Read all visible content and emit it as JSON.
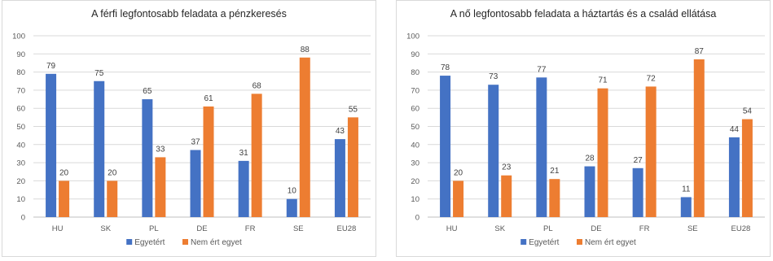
{
  "chart_data": [
    {
      "type": "bar",
      "title": "A férfi legfontosabb feladata a pénzkeresés",
      "categories": [
        "HU",
        "SK",
        "PL",
        "DE",
        "FR",
        "SE",
        "EU28"
      ],
      "series": [
        {
          "name": "Egyetért",
          "color": "#4472C4",
          "values": [
            79,
            75,
            65,
            37,
            31,
            10,
            43
          ]
        },
        {
          "name": "Nem ért egyet",
          "color": "#ED7D31",
          "values": [
            20,
            20,
            33,
            61,
            68,
            88,
            55
          ]
        }
      ],
      "ylim": [
        0,
        100
      ],
      "yticks": [
        0,
        10,
        20,
        30,
        40,
        50,
        60,
        70,
        80,
        90,
        100
      ],
      "grid": true,
      "legend": "bottom-center"
    },
    {
      "type": "bar",
      "title": "A nő legfontosabb feladata a háztartás és a család ellátása",
      "categories": [
        "HU",
        "SK",
        "PL",
        "DE",
        "FR",
        "SE",
        "EU28"
      ],
      "series": [
        {
          "name": "Egyetért",
          "color": "#4472C4",
          "values": [
            78,
            73,
            77,
            28,
            27,
            11,
            44
          ]
        },
        {
          "name": "Nem ért egyet",
          "color": "#ED7D31",
          "values": [
            20,
            23,
            21,
            71,
            72,
            87,
            54
          ]
        }
      ],
      "ylim": [
        0,
        100
      ],
      "yticks": [
        0,
        10,
        20,
        30,
        40,
        50,
        60,
        70,
        80,
        90,
        100
      ],
      "grid": true,
      "legend": "bottom-center"
    }
  ]
}
